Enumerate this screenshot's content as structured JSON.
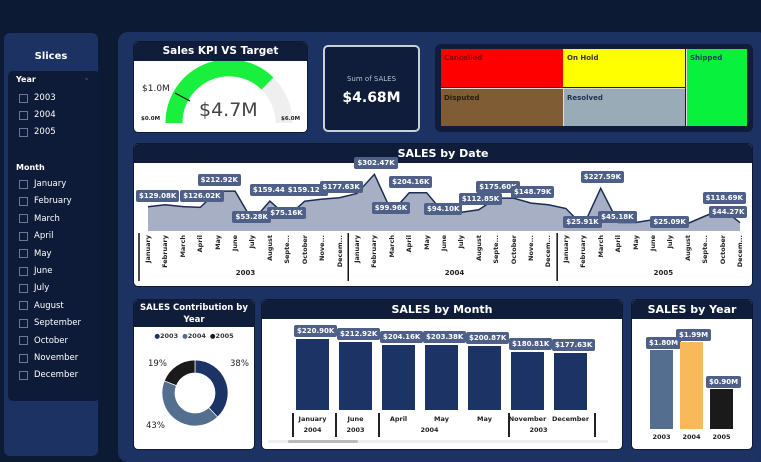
{
  "slicers": {
    "title": "Slices",
    "year": {
      "label": "Year",
      "options": [
        "2003",
        "2004",
        "2005"
      ]
    },
    "month": {
      "label": "Month",
      "options": [
        "January",
        "February",
        "March",
        "April",
        "May",
        "June",
        "July",
        "August",
        "September",
        "October",
        "November",
        "December"
      ]
    }
  },
  "gauge": {
    "title": "Sales KPI VS Target",
    "value_label": "$4.7M",
    "min_label": "$0.0M",
    "max_label": "$6.0M",
    "target_label": "$1.0M",
    "value": 4.68,
    "min": 0,
    "max": 6,
    "target": 1.0,
    "fill_color": "#19f03e",
    "track_color": "#efefef"
  },
  "kpi_card": {
    "caption": "Sum of SALES",
    "value": "$4.68M"
  },
  "status_treemap": {
    "items": [
      {
        "label": "Cancelled",
        "color": "#ff0000"
      },
      {
        "label": "On Hold",
        "color": "#ffff00"
      },
      {
        "label": "Shipped",
        "color": "#08f13d"
      },
      {
        "label": "Disputed",
        "color": "#7f5c33"
      },
      {
        "label": "Resolved",
        "color": "#9aabb8"
      }
    ]
  },
  "sales_by_date": {
    "title": "SALES by Date",
    "years": [
      "2003",
      "2004",
      "2005"
    ]
  },
  "sales_contribution": {
    "title": "SALES Contribution by Year",
    "legend": [
      {
        "label": "2003",
        "color": "#1c3366"
      },
      {
        "label": "2004",
        "color": "#536e8e"
      },
      {
        "label": "2005",
        "color": "#1a1a1a"
      }
    ],
    "pct_labels": [
      "38%",
      "43%",
      "19%"
    ]
  },
  "sales_by_month": {
    "title": "SALES by Month"
  },
  "sales_by_year": {
    "title": "SALES by Year"
  },
  "chart_data": [
    {
      "type": "gauge",
      "title": "Sales KPI VS Target",
      "value": 4.68,
      "min": 0,
      "max": 6,
      "target": 1.0,
      "unit": "$M"
    },
    {
      "type": "area",
      "title": "SALES by Date",
      "xlabel": "",
      "ylabel": "",
      "x": [
        "2003-January",
        "2003-February",
        "2003-March",
        "2003-April",
        "2003-May",
        "2003-June",
        "2003-July",
        "2003-August",
        "2003-September",
        "2003-October",
        "2003-November",
        "2003-December",
        "2004-January",
        "2004-February",
        "2004-March",
        "2004-April",
        "2004-May",
        "2004-June",
        "2004-July",
        "2004-August",
        "2004-September",
        "2004-October",
        "2004-November",
        "2004-December",
        "2005-January",
        "2005-February",
        "2005-March",
        "2005-April",
        "2005-May",
        "2005-June",
        "2005-July",
        "2005-August",
        "2005-September",
        "2005-October",
        "2005-December"
      ],
      "values": [
        129.08,
        140,
        130,
        126.02,
        212.92,
        212.92,
        53.28,
        159.44,
        75.16,
        159.12,
        170,
        177.63,
        200,
        302.47,
        99.96,
        204.16,
        204.16,
        94.1,
        100,
        112.85,
        175.6,
        175.6,
        148.79,
        140,
        120,
        25.91,
        227.59,
        45.18,
        45.18,
        60,
        25.09,
        40,
        80,
        118.69,
        44.27
      ],
      "data_labels": [
        "$129.08K",
        "$126.02K",
        "$212.92K",
        "$53.28K",
        "$159.44K",
        "$75.16K",
        "$159.12K",
        "$177.63K",
        "$302.47K",
        "$99.96K",
        "$204.16K",
        "$94.10K",
        "$112.85K",
        "$175.60K",
        "$148.79K",
        "$25.91K",
        "$227.59K",
        "$45.18K",
        "$25.09K",
        "$118.69K",
        "$44.27K"
      ],
      "unit": "$K"
    },
    {
      "type": "pie",
      "title": "SALES Contribution by Year",
      "categories": [
        "2003",
        "2004",
        "2005"
      ],
      "values": [
        38,
        43,
        19
      ],
      "legend_position": "top"
    },
    {
      "type": "bar",
      "title": "SALES by Month",
      "categories": [
        "January 2004",
        "June 2003",
        "April 2004",
        "May 2004",
        "May 2004b",
        "November 2003",
        "December 2003"
      ],
      "display_categories": [
        {
          "month": "January",
          "year": "2004"
        },
        {
          "month": "June",
          "year": "2003"
        },
        {
          "month": "April",
          "year": ""
        },
        {
          "month": "May",
          "year": "2004"
        },
        {
          "month": "May",
          "year": ""
        },
        {
          "month": "November",
          "year": "2003"
        },
        {
          "month": "December",
          "year": ""
        }
      ],
      "values": [
        220.9,
        212.92,
        204.16,
        203.38,
        200.87,
        180.81,
        177.63
      ],
      "data_labels": [
        "$220.90K",
        "$212.92K",
        "$204.16K",
        "$203.38K",
        "$200.87K",
        "$180.81K",
        "$177.63K"
      ],
      "unit": "$K"
    },
    {
      "type": "bar",
      "title": "SALES by Year",
      "categories": [
        "2003",
        "2004",
        "2005"
      ],
      "values": [
        1.8,
        1.99,
        0.9
      ],
      "data_labels": [
        "$1.80M",
        "$1.99M",
        "$0.90M"
      ],
      "colors": [
        "#536e8e",
        "#f8b95a",
        "#1a1a1a"
      ],
      "unit": "$M"
    }
  ]
}
